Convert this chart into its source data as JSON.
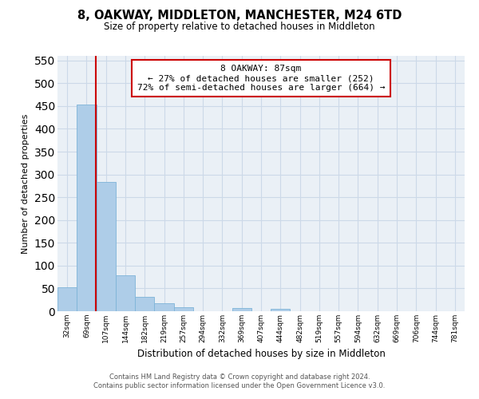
{
  "title": "8, OAKWAY, MIDDLETON, MANCHESTER, M24 6TD",
  "subtitle": "Size of property relative to detached houses in Middleton",
  "xlabel": "Distribution of detached houses by size in Middleton",
  "ylabel": "Number of detached properties",
  "bar_labels": [
    "32sqm",
    "69sqm",
    "107sqm",
    "144sqm",
    "182sqm",
    "219sqm",
    "257sqm",
    "294sqm",
    "332sqm",
    "369sqm",
    "407sqm",
    "444sqm",
    "482sqm",
    "519sqm",
    "557sqm",
    "594sqm",
    "632sqm",
    "669sqm",
    "706sqm",
    "744sqm",
    "781sqm"
  ],
  "bar_values": [
    53,
    453,
    283,
    78,
    32,
    17,
    9,
    0,
    0,
    7,
    0,
    5,
    0,
    0,
    0,
    0,
    0,
    0,
    0,
    0,
    0
  ],
  "bar_color": "#aecde8",
  "bar_edge_color": "#7eb4d8",
  "property_line_color": "#cc0000",
  "ylim": [
    0,
    560
  ],
  "yticks": [
    0,
    50,
    100,
    150,
    200,
    250,
    300,
    350,
    400,
    450,
    500,
    550
  ],
  "annotation_line1": "8 OAKWAY: 87sqm",
  "annotation_line2": "← 27% of detached houses are smaller (252)",
  "annotation_line3": "72% of semi-detached houses are larger (664) →",
  "annotation_box_color": "#ffffff",
  "annotation_box_edge": "#cc0000",
  "footer_line1": "Contains HM Land Registry data © Crown copyright and database right 2024.",
  "footer_line2": "Contains public sector information licensed under the Open Government Licence v3.0.",
  "grid_color": "#ccd9e8",
  "background_color": "#eaf0f6"
}
